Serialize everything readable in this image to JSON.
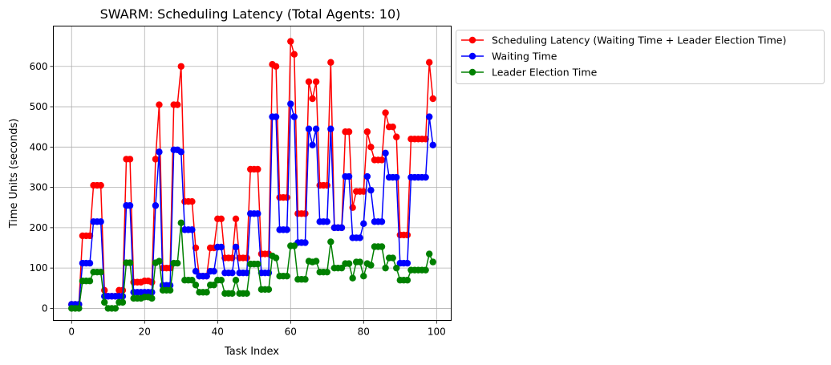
{
  "chart_data": {
    "type": "line",
    "title": "SWARM: Scheduling Latency (Total Agents: 10)",
    "xlabel": "Task Index",
    "ylabel": "Time Units (seconds)",
    "xlim": [
      -5,
      104
    ],
    "ylim": [
      -30,
      700
    ],
    "xticks": [
      0,
      20,
      40,
      60,
      80,
      100
    ],
    "yticks": [
      0,
      100,
      200,
      300,
      400,
      500,
      600
    ],
    "grid": true,
    "legend_position": "outside-top-right",
    "series": [
      {
        "name": "Scheduling Latency (Waiting Time + Leader Election Time)",
        "color": "#ff0000",
        "marker": "circle",
        "x": [
          0,
          1,
          2,
          3,
          4,
          5,
          6,
          7,
          8,
          9,
          10,
          11,
          12,
          13,
          14,
          15,
          16,
          17,
          18,
          19,
          20,
          21,
          22,
          23,
          24,
          25,
          26,
          27,
          28,
          29,
          30,
          31,
          32,
          33,
          34,
          35,
          36,
          37,
          38,
          39,
          40,
          41,
          42,
          43,
          44,
          45,
          46,
          47,
          48,
          49,
          50,
          51,
          52,
          53,
          54,
          55,
          56,
          57,
          58,
          59,
          60,
          61,
          62,
          63,
          64,
          65,
          66,
          67,
          68,
          69,
          70,
          71,
          72,
          73,
          74,
          75,
          76,
          77,
          78,
          79,
          80,
          81,
          82,
          83,
          84,
          85,
          86,
          87,
          88,
          89,
          90,
          91,
          92,
          93,
          94,
          95,
          96,
          97,
          98,
          99
        ],
        "y": [
          10,
          10,
          10,
          180,
          180,
          180,
          305,
          305,
          305,
          45,
          30,
          30,
          30,
          45,
          45,
          370,
          370,
          65,
          65,
          65,
          68,
          68,
          65,
          370,
          505,
          100,
          100,
          100,
          505,
          505,
          600,
          265,
          265,
          265,
          150,
          80,
          80,
          80,
          150,
          150,
          222,
          222,
          125,
          125,
          125,
          222,
          125,
          125,
          125,
          345,
          345,
          345,
          135,
          135,
          135,
          605,
          600,
          275,
          275,
          275,
          662,
          630,
          235,
          235,
          235,
          562,
          520,
          562,
          305,
          305,
          305,
          610,
          200,
          200,
          200,
          438,
          438,
          250,
          290,
          290,
          290,
          438,
          400,
          368,
          368,
          368,
          485,
          450,
          450,
          425,
          182,
          182,
          182,
          420,
          420,
          420,
          420,
          420,
          610,
          520
        ]
      },
      {
        "name": "Waiting Time",
        "color": "#0000ff",
        "marker": "circle",
        "x": [
          0,
          1,
          2,
          3,
          4,
          5,
          6,
          7,
          8,
          9,
          10,
          11,
          12,
          13,
          14,
          15,
          16,
          17,
          18,
          19,
          20,
          21,
          22,
          23,
          24,
          25,
          26,
          27,
          28,
          29,
          30,
          31,
          32,
          33,
          34,
          35,
          36,
          37,
          38,
          39,
          40,
          41,
          42,
          43,
          44,
          45,
          46,
          47,
          48,
          49,
          50,
          51,
          52,
          53,
          54,
          55,
          56,
          57,
          58,
          59,
          60,
          61,
          62,
          63,
          64,
          65,
          66,
          67,
          68,
          69,
          70,
          71,
          72,
          73,
          74,
          75,
          76,
          77,
          78,
          79,
          80,
          81,
          82,
          83,
          84,
          85,
          86,
          87,
          88,
          89,
          90,
          91,
          92,
          93,
          94,
          95,
          96,
          97,
          98,
          99
        ],
        "y": [
          10,
          10,
          10,
          112,
          112,
          112,
          215,
          215,
          215,
          30,
          30,
          30,
          30,
          30,
          30,
          255,
          255,
          40,
          40,
          40,
          40,
          40,
          40,
          255,
          388,
          57,
          57,
          57,
          393,
          393,
          388,
          195,
          195,
          195,
          92,
          80,
          80,
          80,
          92,
          92,
          152,
          152,
          88,
          88,
          88,
          152,
          88,
          88,
          88,
          235,
          235,
          235,
          88,
          88,
          88,
          475,
          475,
          195,
          195,
          195,
          507,
          475,
          163,
          163,
          163,
          445,
          405,
          445,
          215,
          215,
          215,
          445,
          200,
          200,
          200,
          327,
          327,
          175,
          175,
          175,
          210,
          327,
          293,
          215,
          215,
          215,
          385,
          325,
          325,
          325,
          112,
          112,
          112,
          325,
          325,
          325,
          325,
          325,
          475,
          405
        ]
      },
      {
        "name": "Leader Election Time",
        "color": "#008000",
        "marker": "circle",
        "x": [
          0,
          1,
          2,
          3,
          4,
          5,
          6,
          7,
          8,
          9,
          10,
          11,
          12,
          13,
          14,
          15,
          16,
          17,
          18,
          19,
          20,
          21,
          22,
          23,
          24,
          25,
          26,
          27,
          28,
          29,
          30,
          31,
          32,
          33,
          34,
          35,
          36,
          37,
          38,
          39,
          40,
          41,
          42,
          43,
          44,
          45,
          46,
          47,
          48,
          49,
          50,
          51,
          52,
          53,
          54,
          55,
          56,
          57,
          58,
          59,
          60,
          61,
          62,
          63,
          64,
          65,
          66,
          67,
          68,
          69,
          70,
          71,
          72,
          73,
          74,
          75,
          76,
          77,
          78,
          79,
          80,
          81,
          82,
          83,
          84,
          85,
          86,
          87,
          88,
          89,
          90,
          91,
          92,
          93,
          94,
          95,
          96,
          97,
          98,
          99
        ],
        "y": [
          0,
          0,
          0,
          68,
          68,
          68,
          90,
          90,
          90,
          15,
          0,
          0,
          0,
          15,
          15,
          113,
          113,
          25,
          25,
          25,
          28,
          28,
          25,
          113,
          117,
          45,
          45,
          45,
          112,
          112,
          212,
          70,
          70,
          70,
          58,
          40,
          40,
          40,
          58,
          58,
          70,
          70,
          37,
          37,
          37,
          70,
          37,
          37,
          37,
          110,
          110,
          110,
          47,
          47,
          47,
          130,
          125,
          80,
          80,
          80,
          155,
          155,
          72,
          72,
          72,
          117,
          115,
          117,
          90,
          90,
          90,
          165,
          100,
          100,
          100,
          111,
          111,
          75,
          115,
          115,
          80,
          111,
          107,
          153,
          153,
          153,
          100,
          125,
          125,
          100,
          70,
          70,
          70,
          95,
          95,
          95,
          95,
          95,
          135,
          115
        ]
      }
    ]
  }
}
